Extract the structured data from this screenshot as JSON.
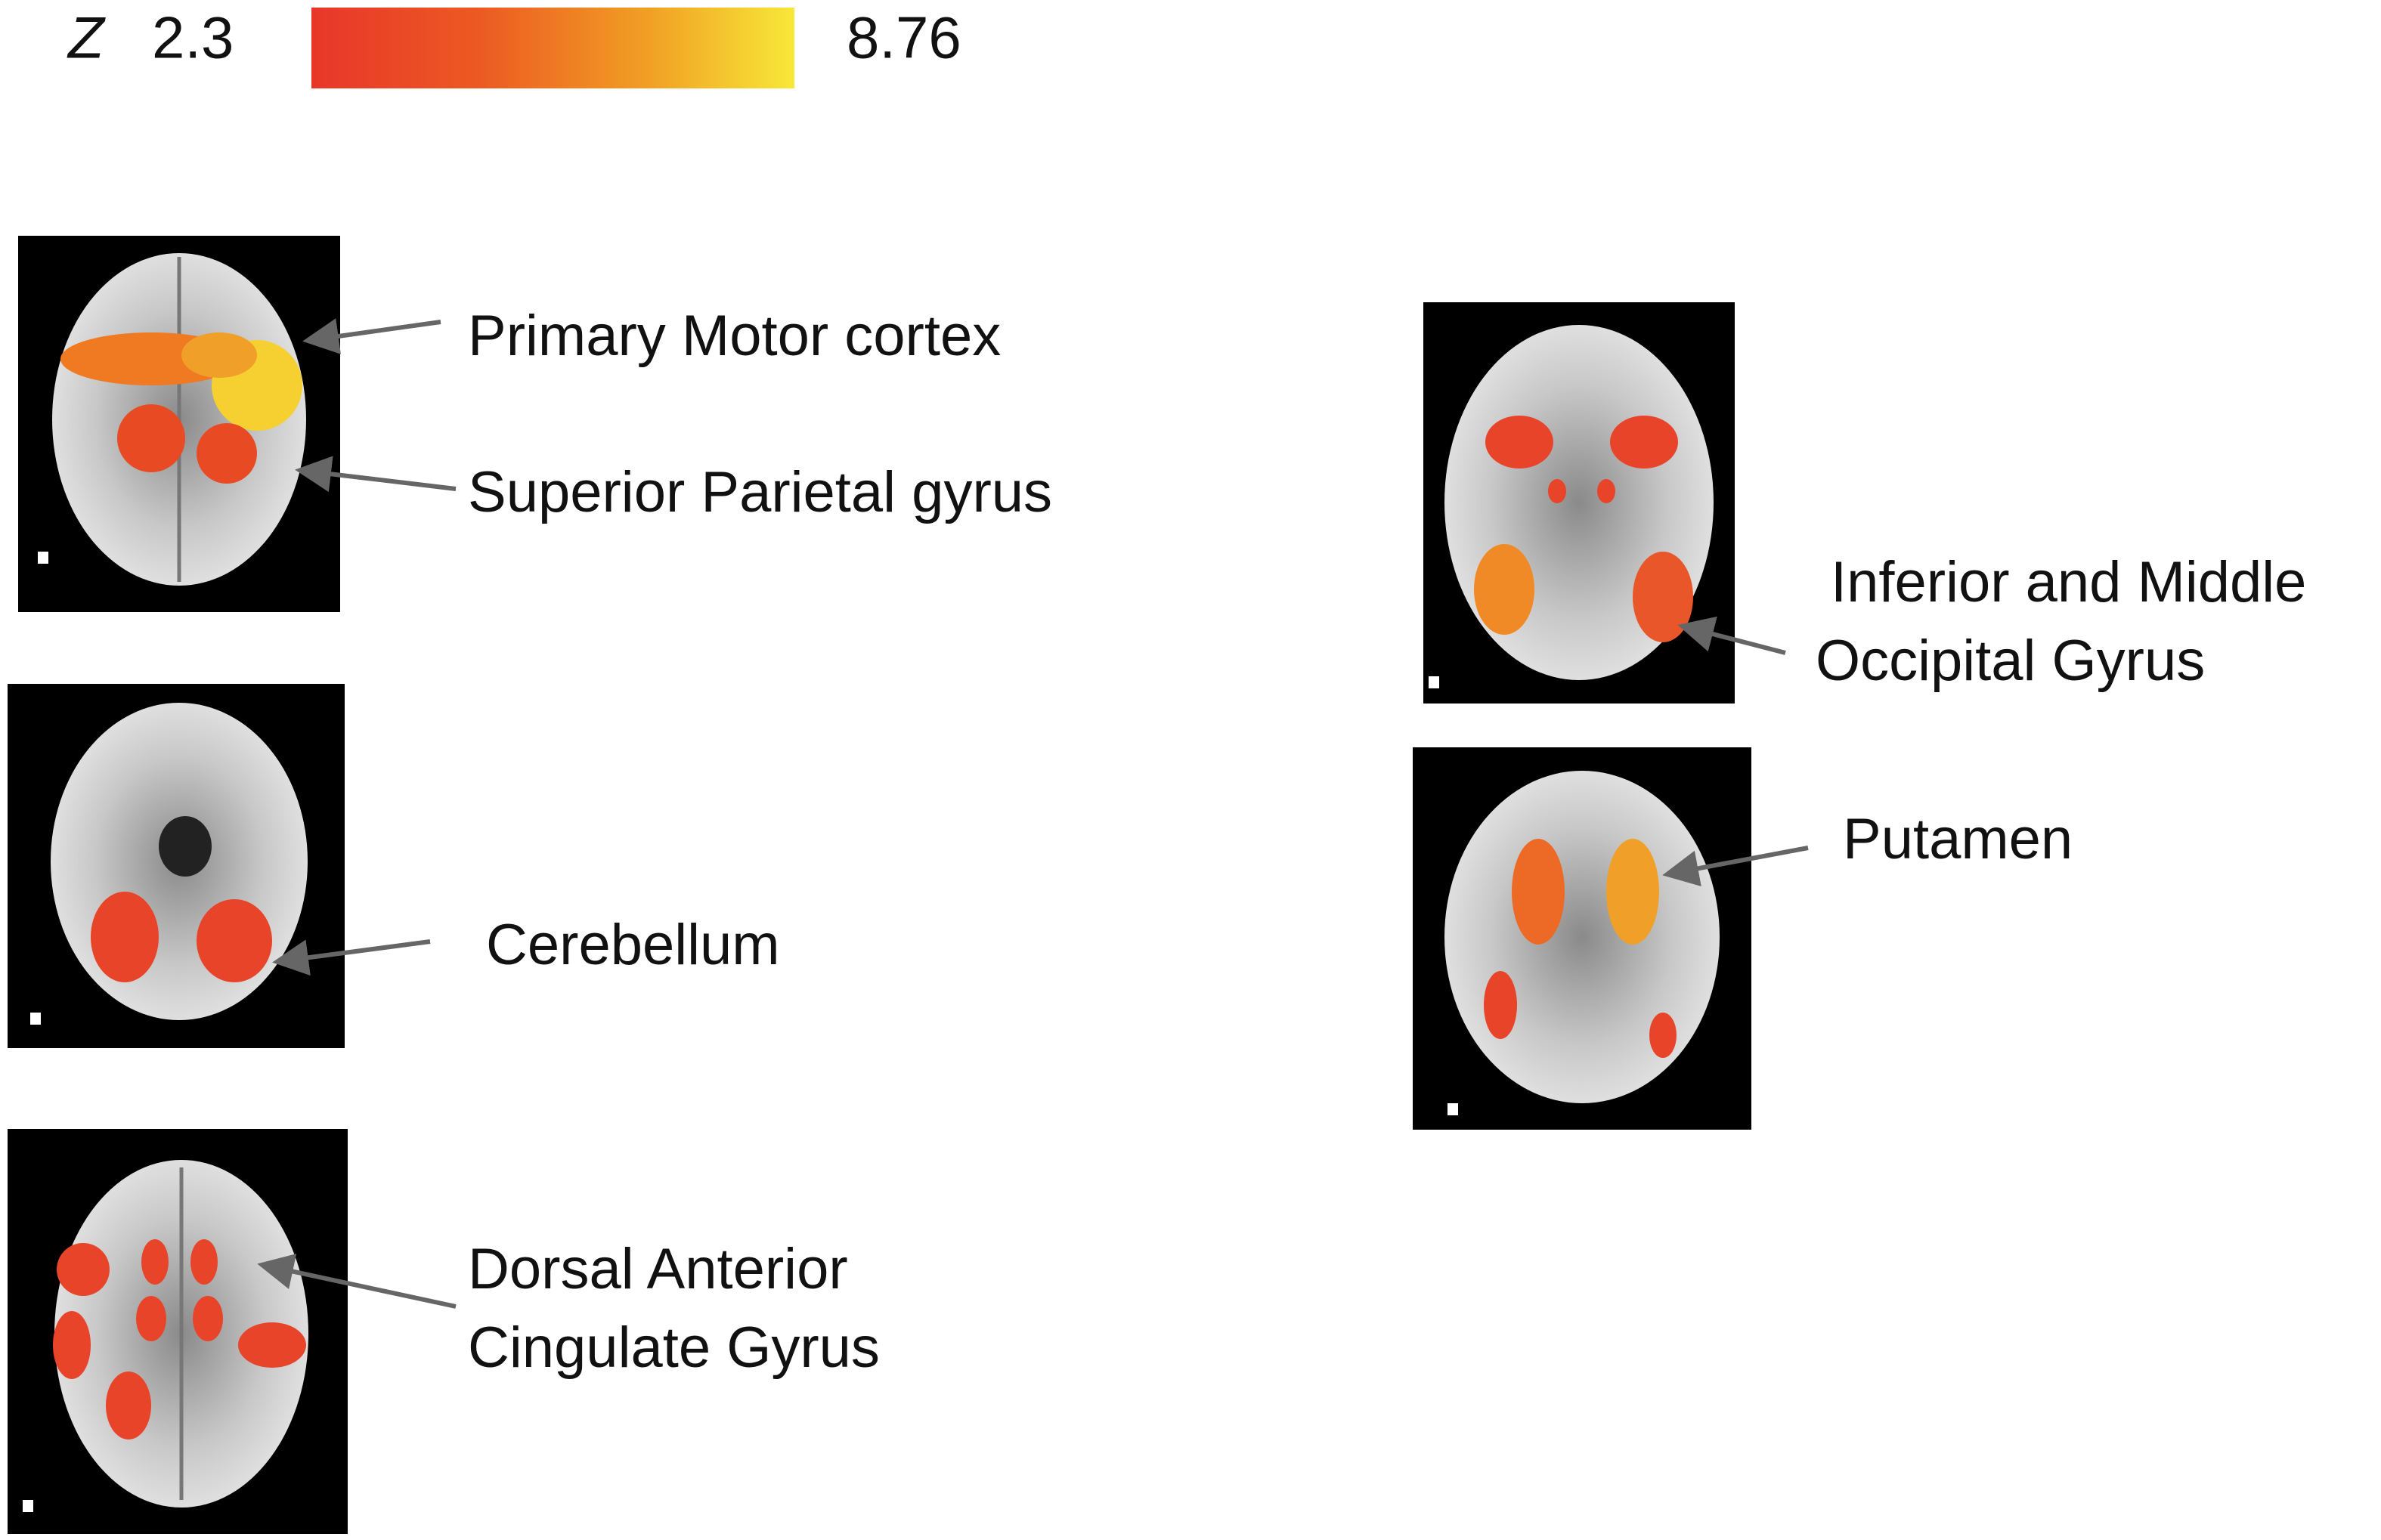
{
  "colorbar": {
    "label": "Z",
    "min": 2.3,
    "max": 8.76
  },
  "panels": [
    {
      "labels": [
        "Primary Motor cortex",
        "Superior Parietal gyrus"
      ]
    },
    {
      "labels": [
        "Cerebellum"
      ]
    },
    {
      "labels": [
        "Dorsal Anterior",
        "Cingulate Gyrus"
      ]
    },
    {
      "labels": [
        "Inferior and Middle",
        "Occipital Gyrus"
      ]
    },
    {
      "labels": [
        "Putamen"
      ]
    }
  ]
}
